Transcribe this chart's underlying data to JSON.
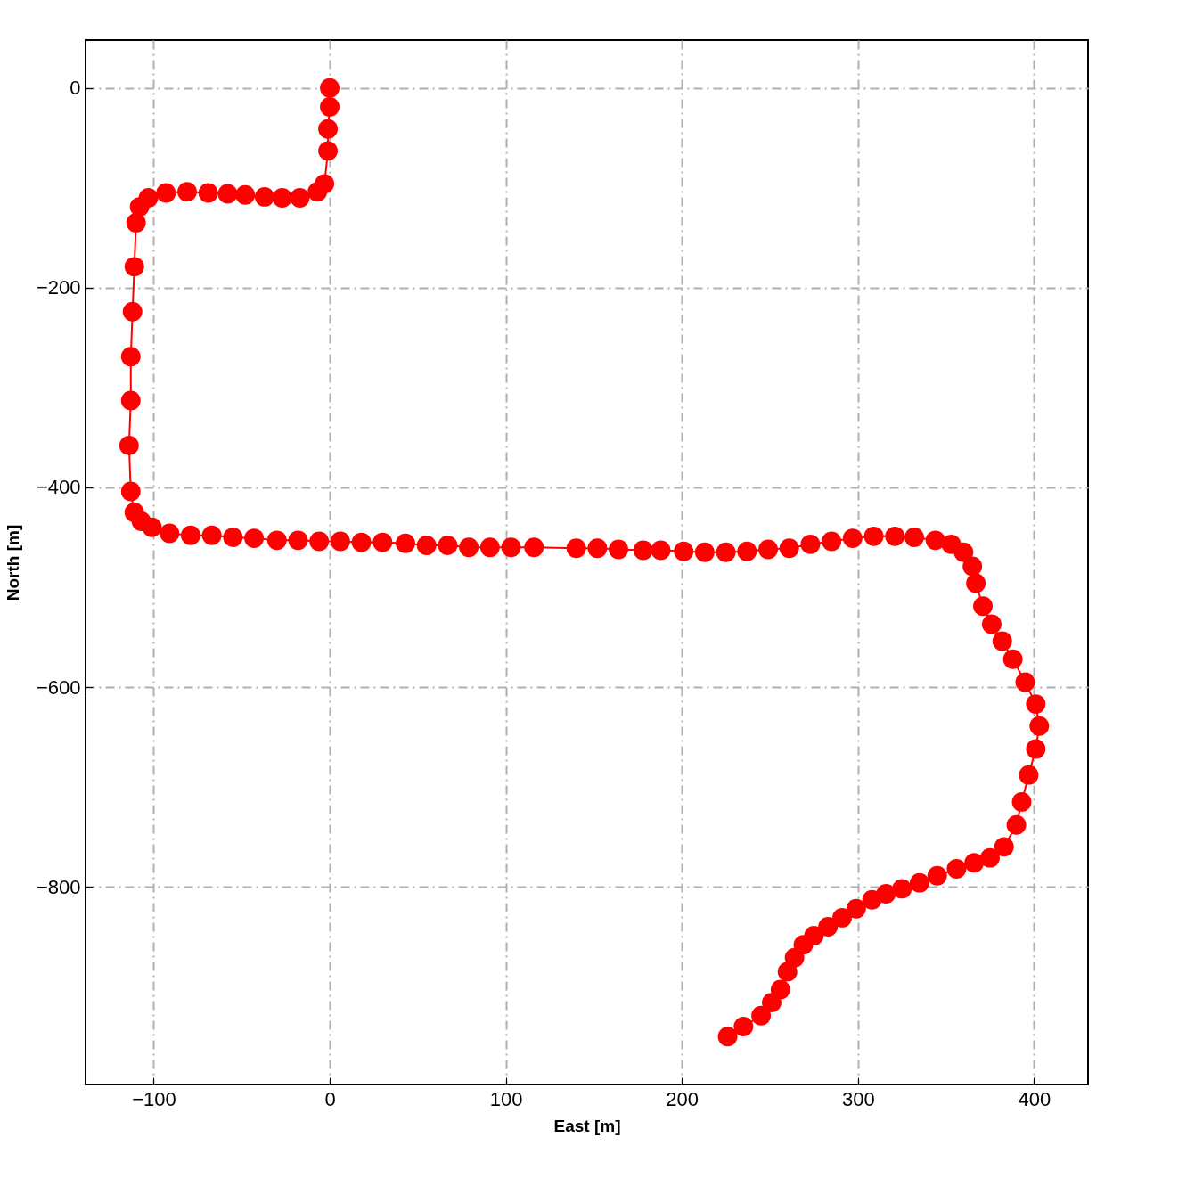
{
  "chart_data": {
    "type": "line",
    "xlabel": "East [m]",
    "ylabel": "North [m]",
    "xlim": [
      -138.7,
      430.7
    ],
    "ylim": [
      -998,
      48
    ],
    "xticks": [
      -100,
      0,
      100,
      200,
      300,
      400
    ],
    "yticks": [
      -800,
      -600,
      -400,
      -200,
      0
    ],
    "grid": true,
    "marker": "circle",
    "line_style": "solid",
    "series": [
      {
        "color": "#ff0000",
        "x": [
          0,
          0,
          -1,
          -1,
          -3,
          -7,
          -17,
          -27,
          -37,
          -48,
          -58,
          -69,
          -81,
          -93,
          -103,
          -108,
          -110,
          -111,
          -112,
          -113,
          -113,
          -114,
          -113,
          -111,
          -107,
          -101,
          -91,
          -79,
          -67,
          -55,
          -43,
          -30,
          -18,
          -6,
          6,
          18,
          30,
          43,
          55,
          67,
          79,
          91,
          103,
          116,
          140,
          152,
          164,
          178,
          188,
          201,
          213,
          225,
          237,
          249,
          261,
          273,
          285,
          297,
          309,
          321,
          332,
          344,
          353,
          360,
          365,
          367,
          371,
          376,
          382,
          388,
          395,
          401,
          403,
          401,
          397,
          393,
          390,
          383,
          375,
          366,
          356,
          345,
          335,
          325,
          316,
          308,
          299,
          291,
          283,
          275,
          269,
          264,
          260,
          256,
          251,
          245,
          235,
          226
        ],
        "values": [
          0,
          -19,
          -41,
          -63,
          -96,
          -104,
          -110,
          -110,
          -109,
          -107,
          -106,
          -105,
          -104,
          -105,
          -110,
          -119,
          -135,
          -179,
          -224,
          -269,
          -313,
          -358,
          -404,
          -425,
          -434,
          -440,
          -446,
          -448,
          -448,
          -450,
          -451,
          -453,
          -453,
          -454,
          -454,
          -455,
          -455,
          -456,
          -458,
          -458,
          -460,
          -460,
          -460,
          -460,
          -461,
          -461,
          -462,
          -463,
          -463,
          -464,
          -465,
          -465,
          -464,
          -462,
          -461,
          -457,
          -454,
          -451,
          -449,
          -449,
          -450,
          -453,
          -457,
          -465,
          -479,
          -496,
          -519,
          -537,
          -554,
          -572,
          -595,
          -617,
          -639,
          -662,
          -688,
          -715,
          -738,
          -760,
          -771,
          -776,
          -782,
          -789,
          -796,
          -802,
          -807,
          -813,
          -822,
          -831,
          -840,
          -849,
          -858,
          -871,
          -885,
          -903,
          -916,
          -929,
          -940,
          -950
        ]
      }
    ]
  }
}
